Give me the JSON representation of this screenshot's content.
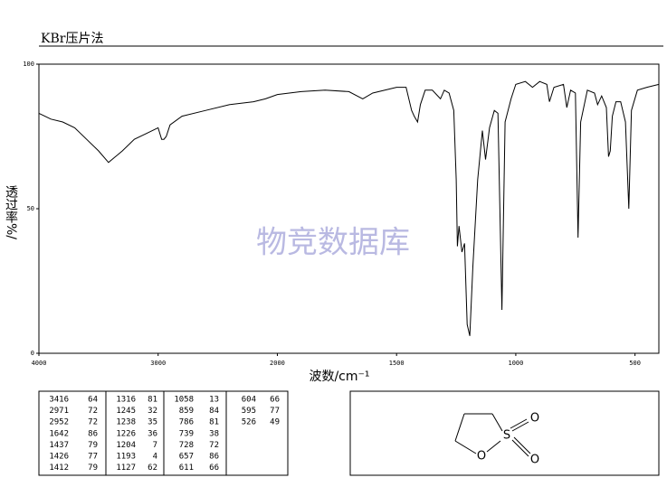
{
  "chart_data": {
    "type": "line",
    "title": "KBr压片法",
    "xlabel": "波数/cm⁻¹",
    "ylabel": "透过率%/",
    "watermark": "物竞数据库",
    "xlim": [
      4000,
      400
    ],
    "xbreak": 2000,
    "xbreak_zoom": 2,
    "xticks": [
      4000,
      3000,
      2000,
      1500,
      1000,
      500
    ],
    "ylim": [
      0,
      100
    ],
    "yticks": [
      0,
      50,
      100
    ],
    "color": "#000000",
    "x": [
      4000,
      3900,
      3800,
      3700,
      3600,
      3500,
      3416,
      3300,
      3200,
      3100,
      3000,
      2971,
      2952,
      2932,
      2900,
      2800,
      2600,
      2400,
      2200,
      2100,
      2000,
      1900,
      1800,
      1700,
      1642,
      1600,
      1500,
      1460,
      1437,
      1426,
      1412,
      1400,
      1380,
      1350,
      1316,
      1300,
      1280,
      1260,
      1250,
      1245,
      1238,
      1226,
      1215,
      1204,
      1193,
      1180,
      1160,
      1140,
      1127,
      1110,
      1090,
      1075,
      1058,
      1045,
      1020,
      1000,
      960,
      930,
      900,
      870,
      859,
      840,
      800,
      786,
      770,
      750,
      739,
      728,
      700,
      670,
      657,
      640,
      620,
      611,
      604,
      595,
      580,
      560,
      540,
      526,
      515,
      490,
      450,
      400
    ],
    "values": [
      83,
      81,
      80,
      78,
      74,
      70,
      66,
      70,
      74,
      76,
      78,
      74,
      74,
      75,
      79,
      82,
      84,
      86,
      87,
      88,
      89.5,
      90.5,
      91,
      90.5,
      88,
      90,
      92,
      92,
      84,
      82,
      80,
      86,
      91,
      91,
      88,
      91,
      90,
      84,
      60,
      37,
      44,
      35,
      38,
      10,
      6,
      30,
      60,
      77,
      67,
      78,
      84,
      83,
      15,
      80,
      88,
      93,
      94,
      92,
      94,
      93,
      87,
      92,
      93,
      85,
      91,
      90,
      40,
      80,
      91,
      90,
      86,
      89,
      85,
      68,
      70,
      82,
      87,
      87,
      80,
      50,
      84,
      91,
      92,
      93
    ]
  },
  "peak_table": [
    [
      [
        3416,
        64
      ],
      [
        2971,
        72
      ],
      [
        2952,
        72
      ],
      [
        1642,
        86
      ],
      [
        1437,
        79
      ],
      [
        1426,
        77
      ],
      [
        1412,
        79
      ]
    ],
    [
      [
        1316,
        81
      ],
      [
        1245,
        32
      ],
      [
        1238,
        35
      ],
      [
        1226,
        36
      ],
      [
        1204,
        7
      ],
      [
        1193,
        4
      ],
      [
        1127,
        62
      ]
    ],
    [
      [
        1058,
        13
      ],
      [
        859,
        84
      ],
      [
        786,
        81
      ],
      [
        739,
        38
      ],
      [
        728,
        72
      ],
      [
        657,
        86
      ],
      [
        611,
        66
      ]
    ],
    [
      [
        604,
        66
      ],
      [
        595,
        77
      ],
      [
        526,
        49
      ]
    ]
  ],
  "structure": {
    "atoms": [
      "O",
      "S",
      "O",
      "O"
    ]
  }
}
